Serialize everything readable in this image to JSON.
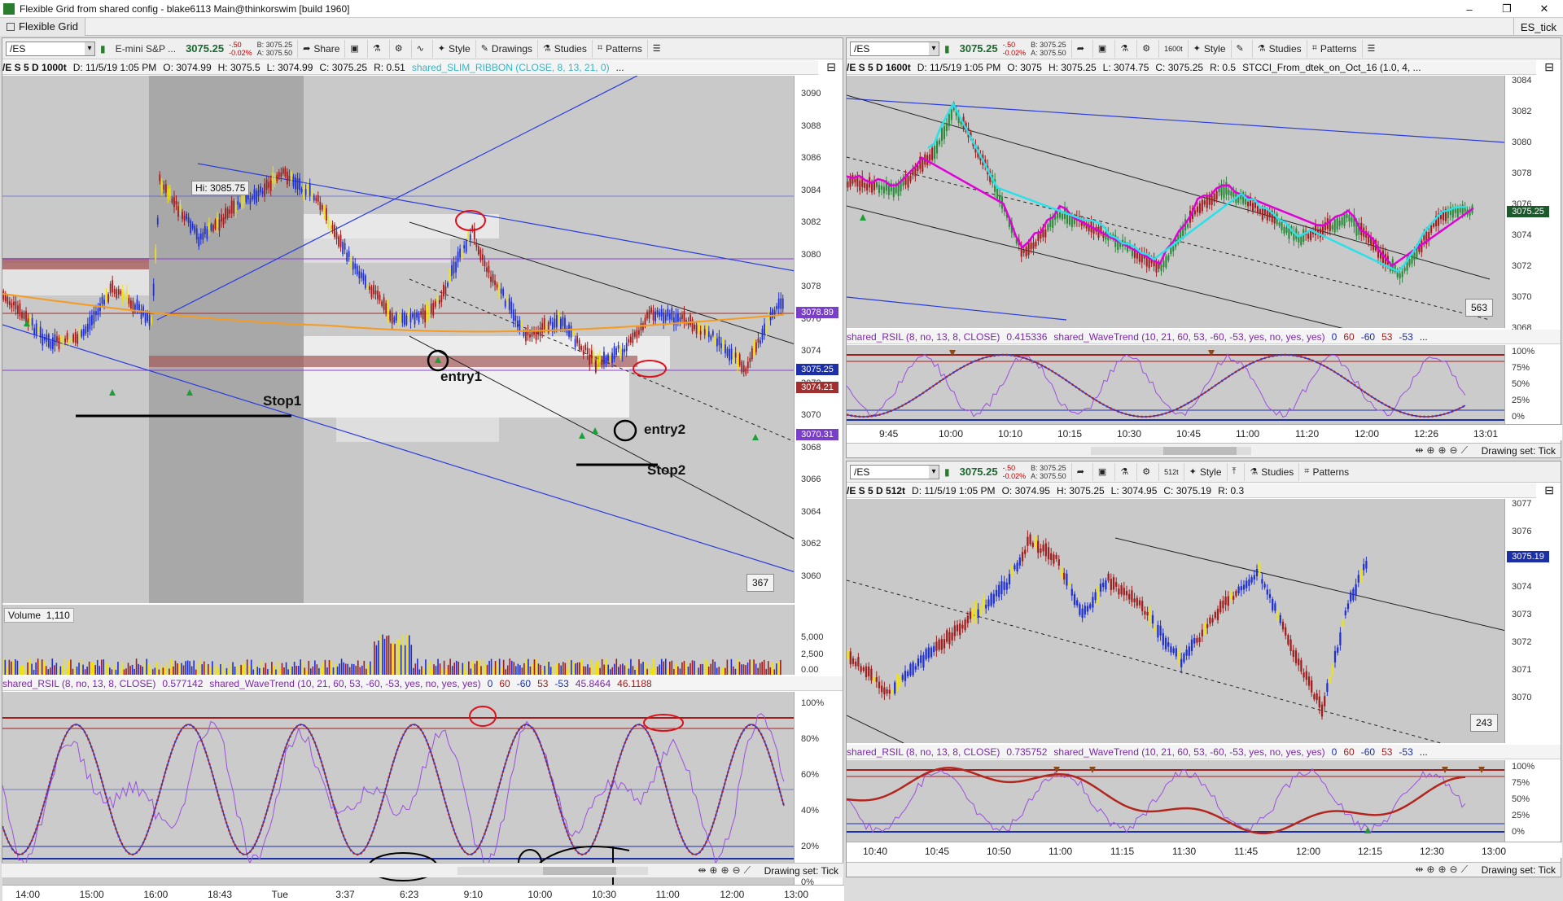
{
  "window": {
    "title": "Flexible Grid from shared config - blake6113 Main@thinkorswim [build 1960]",
    "controls": [
      "–",
      "❐",
      "✕"
    ]
  },
  "menubar": {
    "grid_tab": "Flexible Grid",
    "right_label": "ES_tick"
  },
  "left_chart": {
    "symbol": "/ES",
    "description": "E-mini S&P ...",
    "price": "3075.25",
    "change": "-.50",
    "change_pct": "-0.02%",
    "bid": "B: 3075.25",
    "ask": "A: 3075.50",
    "toolbar": [
      "Share",
      "Style",
      "Drawings",
      "Studies",
      "Patterns"
    ],
    "info": {
      "id": "/E S 5 D 1000t",
      "date": "D: 11/5/19 1:05 PM",
      "open": "O: 3074.99",
      "high": "H: 3075.5",
      "low": "L: 3074.99",
      "close": "C: 3075.25",
      "range": "R: 0.51",
      "study": "shared_SLIM_RIBBON (CLOSE, 8, 13, 21, 0)",
      "more": "..."
    },
    "hi_label": "Hi: 3085.75",
    "price_ticks": [
      "3090",
      "3088",
      "3086",
      "3084",
      "3082",
      "3080",
      "3078",
      "3076",
      "3074",
      "3072",
      "3070",
      "3068",
      "3066",
      "3064",
      "3062",
      "3060"
    ],
    "price_tags": [
      {
        "text": "3078.89",
        "color": "#7a3fc9"
      },
      {
        "text": "3075.25",
        "color": "#1b2fa8"
      },
      {
        "text": "3074.21",
        "color": "#a12f2f"
      },
      {
        "text": "3070.31",
        "color": "#7a3fc9"
      }
    ],
    "annotations": [
      "Stop1",
      "entry1",
      "entry2",
      "Stop2"
    ],
    "bar_count": "367",
    "volume": {
      "label": "Volume",
      "value": "1,110",
      "ticks": [
        "5,000",
        "2,500",
        "0.00"
      ]
    },
    "osc": {
      "name": "shared_RSIL (8, no, 13, 8, CLOSE)",
      "value": "0.577142",
      "wt_name": "shared_WaveTrend (10, 21, 60, 53, -60, -53, yes, no, yes, yes)",
      "wt_values": [
        "0",
        "60",
        "-60",
        "53",
        "-53",
        "45.8464",
        "46.1188"
      ],
      "ticks": [
        "100%",
        "80%",
        "60%",
        "40%",
        "20%",
        "0%"
      ]
    },
    "time_ticks": [
      "14:00",
      "15:00",
      "16:00",
      "18:43",
      "Tue",
      "3:37",
      "6:23",
      "9:10",
      "10:00",
      "10:30",
      "11:00",
      "12:00",
      "13:00"
    ],
    "drawing_set": "Drawing set: Tick"
  },
  "right_top_chart": {
    "symbol": "/ES",
    "price": "3075.25",
    "change": "-.50",
    "change_pct": "-0.02%",
    "bid": "B: 3075.25",
    "ask": "A: 3075.50",
    "toolbar": [
      "Style",
      "Studies",
      "Patterns"
    ],
    "zoom_label": "1600t",
    "info": {
      "id": "/E S 5 D 1600t",
      "date": "D: 11/5/19 1:05 PM",
      "open": "O: 3075",
      "high": "H: 3075.25",
      "low": "L: 3074.75",
      "close": "C: 3075.25",
      "range": "R: 0.5",
      "study": "STCCI_From_dtek_on_Oct_16 (1.0, 4, ..."
    },
    "price_ticks": [
      "3084",
      "3082",
      "3080",
      "3078",
      "3076",
      "3074",
      "3072",
      "3070",
      "3068"
    ],
    "price_tag": "3075.25",
    "bar_count": "563",
    "osc": {
      "name": "shared_RSIL (8, no, 13, 8, CLOSE)",
      "value": "0.415336",
      "wt_name": "shared_WaveTrend (10, 21, 60, 53, -60, -53, yes, no, yes, yes)",
      "wt_values": [
        "0",
        "60",
        "-60",
        "53",
        "-53",
        "..."
      ],
      "ticks": [
        "100%",
        "75%",
        "50%",
        "25%",
        "0%"
      ]
    },
    "time_ticks": [
      "9:45",
      "10:00",
      "10:10",
      "10:15",
      "10:30",
      "10:45",
      "11:00",
      "11:20",
      "12:00",
      "12:26",
      "13:01"
    ],
    "drawing_set": "Drawing set: Tick"
  },
  "right_bottom_chart": {
    "symbol": "/ES",
    "price": "3075.25",
    "change": "-.50",
    "change_pct": "-0.02%",
    "bid": "B: 3075.25",
    "ask": "A: 3075.50",
    "toolbar": [
      "Style",
      "Studies",
      "Patterns"
    ],
    "zoom_label": "512t",
    "info": {
      "id": "/E S 5 D 512t",
      "date": "D: 11/5/19 1:05 PM",
      "open": "O: 3074.95",
      "high": "H: 3075.25",
      "low": "L: 3074.95",
      "close": "C: 3075.19",
      "range": "R: 0.3"
    },
    "price_ticks": [
      "3077",
      "3076",
      "3075",
      "3074",
      "3073",
      "3072",
      "3071",
      "3070"
    ],
    "price_tag": "3075.19",
    "bar_count": "243",
    "osc": {
      "name": "shared_RSIL (8, no, 13, 8, CLOSE)",
      "value": "0.735752",
      "wt_name": "shared_WaveTrend (10, 21, 60, 53, -60, -53, yes, no, yes, yes)",
      "wt_values": [
        "0",
        "60",
        "-60",
        "53",
        "-53",
        "..."
      ],
      "ticks": [
        "100%",
        "75%",
        "50%",
        "25%",
        "0%"
      ]
    },
    "time_ticks": [
      "10:40",
      "10:45",
      "10:50",
      "11:00",
      "11:15",
      "11:30",
      "11:45",
      "12:00",
      "12:15",
      "12:30",
      "13:00"
    ],
    "drawing_set": "Drawing set: Tick"
  },
  "colors": {
    "up": "#1f2fd6",
    "down": "#a11c1c",
    "neutral": "#f2e600",
    "rsi": "#9b4fe0",
    "wt": "#b3261e",
    "ribbon_magenta": "#e000d8",
    "ribbon_cyan": "#29e1ea",
    "price_green": "#1a6a2e"
  }
}
